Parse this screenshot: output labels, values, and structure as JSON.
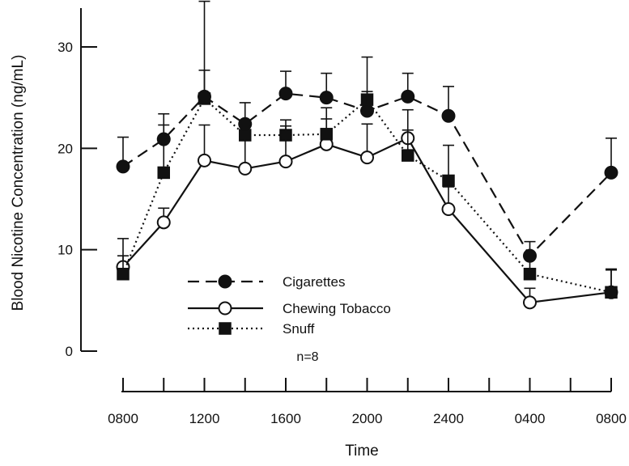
{
  "chart_data": {
    "type": "line",
    "title": "",
    "xlabel": "Time",
    "ylabel": "Blood Nicotine Concentration (ng/mL)",
    "ylim": [
      0,
      30
    ],
    "yticks": [
      "0",
      "10",
      "20",
      "30"
    ],
    "x_tick_labels": [
      "0800",
      "1200",
      "1600",
      "2000",
      "2400",
      "0400",
      "0800"
    ],
    "x_tick_slots": [
      0,
      2,
      4,
      6,
      8,
      10,
      12
    ],
    "x_slot_count": 13,
    "grid": false,
    "legend_position": "bottom-center",
    "annotation": "n=8",
    "series": [
      {
        "name": "Cigarettes",
        "marker": "filled-circle",
        "line": "dashed",
        "points": [
          {
            "slot": 0,
            "y": 18.2,
            "err": 2.9
          },
          {
            "slot": 1,
            "y": 20.9,
            "err": 2.5
          },
          {
            "slot": 2,
            "y": 25.1,
            "err": 2.6
          },
          {
            "slot": 3,
            "y": 22.4,
            "err": 2.1
          },
          {
            "slot": 4,
            "y": 25.4,
            "err": 2.2
          },
          {
            "slot": 5,
            "y": 25.0,
            "err": 2.4
          },
          {
            "slot": 6,
            "y": 23.7,
            "err": 1.9
          },
          {
            "slot": 7,
            "y": 25.1,
            "err": 2.3
          },
          {
            "slot": 8,
            "y": 23.2,
            "err": 2.9
          },
          {
            "slot": 10,
            "y": 9.4,
            "err": 1.4
          },
          {
            "slot": 12,
            "y": 17.6,
            "err": 3.4
          }
        ]
      },
      {
        "name": "Chewing Tobacco",
        "marker": "open-circle",
        "line": "solid",
        "points": [
          {
            "slot": 0,
            "y": 8.3,
            "err": 1.1
          },
          {
            "slot": 1,
            "y": 12.7,
            "err": 1.4
          },
          {
            "slot": 2,
            "y": 18.8,
            "err": 3.5
          },
          {
            "slot": 3,
            "y": 18.0,
            "err": 3.1
          },
          {
            "slot": 4,
            "y": 18.7,
            "err": 3.5
          },
          {
            "slot": 5,
            "y": 20.4,
            "err": 3.6
          },
          {
            "slot": 6,
            "y": 19.1,
            "err": 3.3
          },
          {
            "slot": 7,
            "y": 21.0,
            "err": 2.8
          },
          {
            "slot": 8,
            "y": 14.0,
            "err": 2.2
          },
          {
            "slot": 10,
            "y": 4.8,
            "err": 1.4
          },
          {
            "slot": 12,
            "y": 5.8,
            "err": 2.3
          }
        ]
      },
      {
        "name": "Snuff",
        "marker": "filled-square",
        "line": "dotted",
        "points": [
          {
            "slot": 0,
            "y": 7.6,
            "err": 3.5
          },
          {
            "slot": 1,
            "y": 17.6,
            "err": 4.7
          },
          {
            "slot": 2,
            "y": 24.9,
            "err": 9.6
          },
          {
            "slot": 3,
            "y": 21.3,
            "err": 1.5
          },
          {
            "slot": 4,
            "y": 21.3,
            "err": 1.5
          },
          {
            "slot": 5,
            "y": 21.4,
            "err": 1.5
          },
          {
            "slot": 6,
            "y": 24.8,
            "err": 4.2
          },
          {
            "slot": 7,
            "y": 19.3,
            "err": 2.5
          },
          {
            "slot": 8,
            "y": 16.8,
            "err": 3.5
          },
          {
            "slot": 10,
            "y": 7.6,
            "err": 1.5
          },
          {
            "slot": 12,
            "y": 5.8,
            "err": 2.2
          }
        ]
      }
    ]
  }
}
